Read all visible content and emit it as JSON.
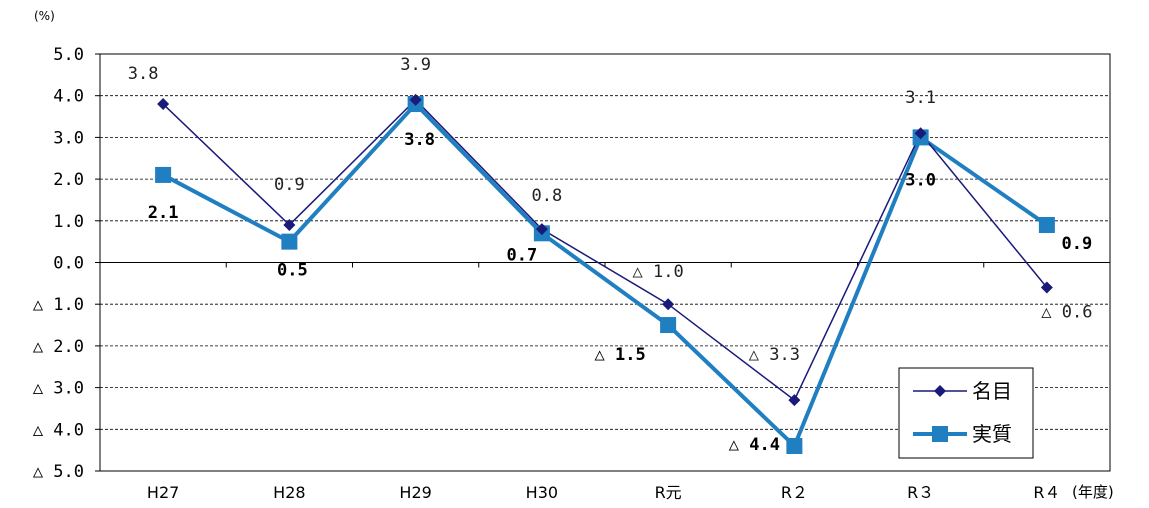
{
  "chart_data": {
    "type": "line",
    "unit_label": "(%)",
    "x_axis_suffix": "(年度)",
    "categories": [
      "H27",
      "H28",
      "H29",
      "H30",
      "R元",
      "R２",
      "R３",
      "R４"
    ],
    "ylim": [
      -5.0,
      5.0
    ],
    "y_ticks": [
      5.0,
      4.0,
      3.0,
      2.0,
      1.0,
      0.0,
      -1.0,
      -2.0,
      -3.0,
      -4.0,
      -5.0
    ],
    "y_tick_labels": [
      "5.0",
      "4.0",
      "3.0",
      "2.0",
      "1.0",
      "0.0",
      "△ 1.0",
      "△ 2.0",
      "△ 3.0",
      "△ 4.0",
      "△ 5.0"
    ],
    "grid": "horizontal dashed",
    "legend_position": "bottom-right",
    "series": [
      {
        "name": "名目",
        "color": "#1a1a7a",
        "marker": "diamond",
        "values": [
          3.8,
          0.9,
          3.9,
          0.8,
          -1.0,
          -3.3,
          3.1,
          -0.6
        ],
        "labels": [
          "3.8",
          "0.9",
          "3.9",
          "0.8",
          "△ 1.0",
          "△ 3.3",
          "3.1",
          "△ 0.6"
        ]
      },
      {
        "name": "実質",
        "color": "#1f7fc0",
        "marker": "square",
        "values": [
          2.1,
          0.5,
          3.8,
          0.7,
          -1.5,
          -4.4,
          3.0,
          0.9
        ],
        "labels": [
          "2.1",
          "0.5",
          "3.8",
          "0.7",
          "△ 1.5",
          "△ 4.4",
          "3.0",
          "0.9"
        ]
      }
    ]
  }
}
